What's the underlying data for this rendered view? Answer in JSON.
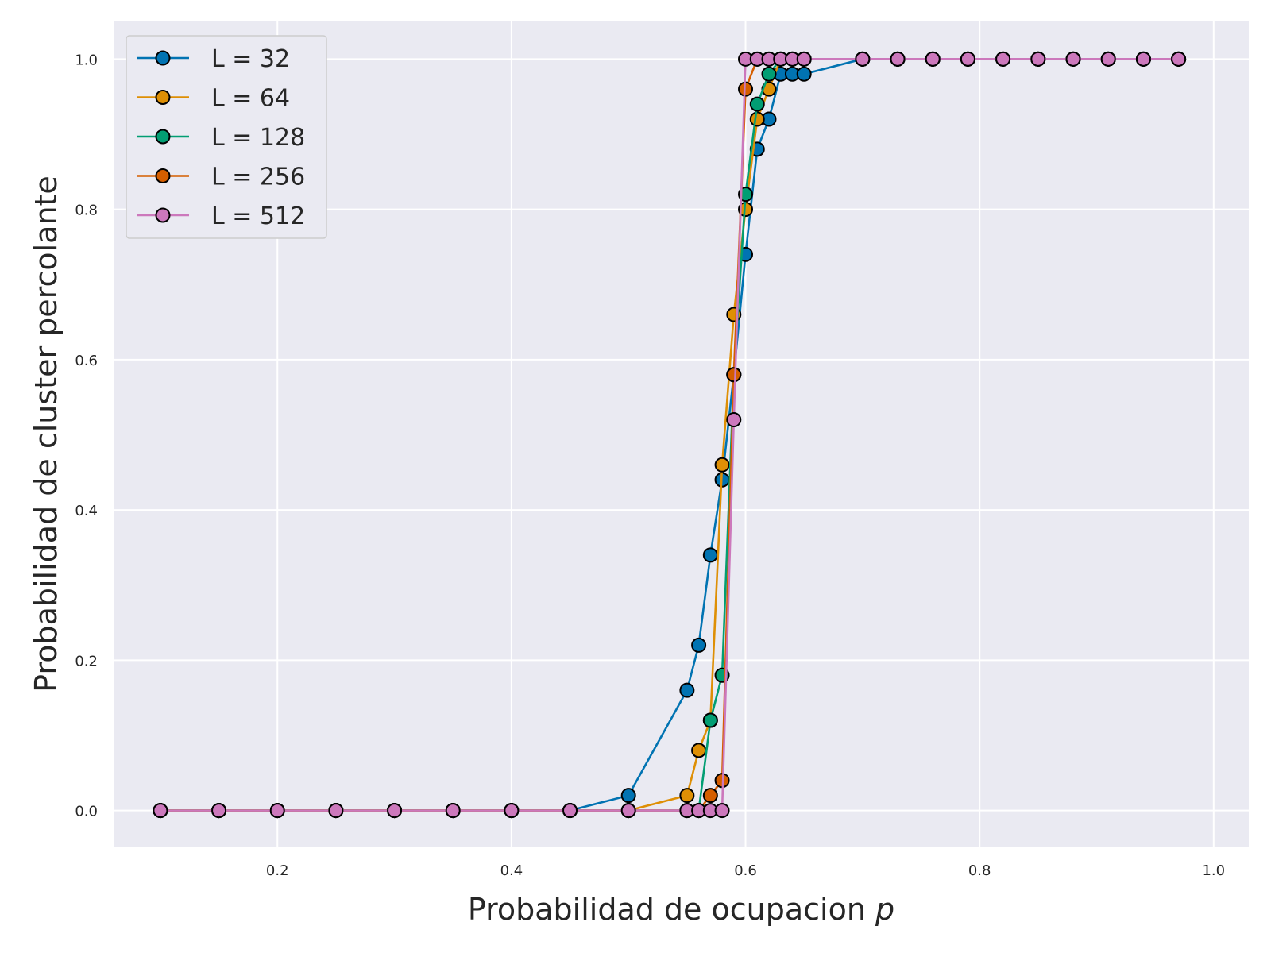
{
  "chart_data": {
    "type": "line",
    "title": "",
    "xlabel": "Probabilidad de ocupacion",
    "xlabel_var": "p",
    "ylabel": "Probabilidad de cluster percolante",
    "xlim": [
      0.06,
      1.03
    ],
    "ylim": [
      -0.048,
      1.05
    ],
    "xticks": [
      0.2,
      0.4,
      0.6,
      0.8,
      1.0
    ],
    "xtick_labels": [
      "0.2",
      "0.4",
      "0.6",
      "0.8",
      "1.0"
    ],
    "yticks": [
      0.0,
      0.2,
      0.4,
      0.6,
      0.8,
      1.0
    ],
    "ytick_labels": [
      "0.0",
      "0.2",
      "0.4",
      "0.6",
      "0.8",
      "1.0"
    ],
    "grid": true,
    "legend_position": "top-left",
    "series": [
      {
        "name": "L = 32",
        "color": "#0173b2",
        "x": [
          0.1,
          0.15,
          0.2,
          0.25,
          0.3,
          0.35,
          0.4,
          0.45,
          0.5,
          0.55,
          0.56,
          0.57,
          0.58,
          0.59,
          0.6,
          0.61,
          0.62,
          0.63,
          0.64,
          0.65,
          0.7,
          0.73,
          0.76,
          0.79,
          0.82,
          0.85,
          0.88,
          0.91,
          0.94,
          0.97
        ],
        "y": [
          0,
          0,
          0,
          0,
          0,
          0,
          0,
          0,
          0.02,
          0.16,
          0.22,
          0.34,
          0.44,
          0.58,
          0.74,
          0.88,
          0.92,
          0.98,
          0.98,
          0.98,
          1,
          1,
          1,
          1,
          1,
          1,
          1,
          1,
          1,
          1
        ]
      },
      {
        "name": "L = 64",
        "color": "#de8f05",
        "x": [
          0.1,
          0.15,
          0.2,
          0.25,
          0.3,
          0.35,
          0.4,
          0.45,
          0.5,
          0.55,
          0.56,
          0.57,
          0.58,
          0.59,
          0.6,
          0.61,
          0.62,
          0.63,
          0.64,
          0.65,
          0.7,
          0.73,
          0.76,
          0.79,
          0.82,
          0.85,
          0.88,
          0.91,
          0.94,
          0.97
        ],
        "y": [
          0,
          0,
          0,
          0,
          0,
          0,
          0,
          0,
          0,
          0.02,
          0.08,
          0.12,
          0.46,
          0.66,
          0.8,
          0.92,
          0.96,
          1,
          1,
          1,
          1,
          1,
          1,
          1,
          1,
          1,
          1,
          1,
          1,
          1
        ]
      },
      {
        "name": "L = 128",
        "color": "#029e73",
        "x": [
          0.1,
          0.15,
          0.2,
          0.25,
          0.3,
          0.35,
          0.4,
          0.45,
          0.5,
          0.55,
          0.56,
          0.57,
          0.58,
          0.59,
          0.6,
          0.61,
          0.62,
          0.63,
          0.64,
          0.65,
          0.7,
          0.73,
          0.76,
          0.79,
          0.82,
          0.85,
          0.88,
          0.91,
          0.94,
          0.97
        ],
        "y": [
          0,
          0,
          0,
          0,
          0,
          0,
          0,
          0,
          0,
          0,
          0,
          0.12,
          0.18,
          0.58,
          0.82,
          0.94,
          0.98,
          1,
          1,
          1,
          1,
          1,
          1,
          1,
          1,
          1,
          1,
          1,
          1,
          1
        ]
      },
      {
        "name": "L = 256",
        "color": "#d55e00",
        "x": [
          0.1,
          0.15,
          0.2,
          0.25,
          0.3,
          0.35,
          0.4,
          0.45,
          0.5,
          0.55,
          0.56,
          0.57,
          0.58,
          0.59,
          0.6,
          0.61,
          0.62,
          0.63,
          0.64,
          0.65,
          0.7,
          0.73,
          0.76,
          0.79,
          0.82,
          0.85,
          0.88,
          0.91,
          0.94,
          0.97
        ],
        "y": [
          0,
          0,
          0,
          0,
          0,
          0,
          0,
          0,
          0,
          0,
          0,
          0.02,
          0.04,
          0.58,
          0.96,
          1,
          1,
          1,
          1,
          1,
          1,
          1,
          1,
          1,
          1,
          1,
          1,
          1,
          1,
          1
        ]
      },
      {
        "name": "L = 512",
        "color": "#cc78bc",
        "x": [
          0.1,
          0.15,
          0.2,
          0.25,
          0.3,
          0.35,
          0.4,
          0.45,
          0.5,
          0.55,
          0.56,
          0.57,
          0.58,
          0.59,
          0.6,
          0.61,
          0.62,
          0.63,
          0.64,
          0.65,
          0.7,
          0.73,
          0.76,
          0.79,
          0.82,
          0.85,
          0.88,
          0.91,
          0.94,
          0.97
        ],
        "y": [
          0,
          0,
          0,
          0,
          0,
          0,
          0,
          0,
          0,
          0,
          0,
          0,
          0,
          0.52,
          1,
          1,
          1,
          1,
          1,
          1,
          1,
          1,
          1,
          1,
          1,
          1,
          1,
          1,
          1,
          1
        ]
      }
    ]
  },
  "style": {
    "plot_background": "#eaeaf2",
    "grid_color": "#ffffff",
    "marker_edge_color": "#000000",
    "text_color": "#262626"
  }
}
